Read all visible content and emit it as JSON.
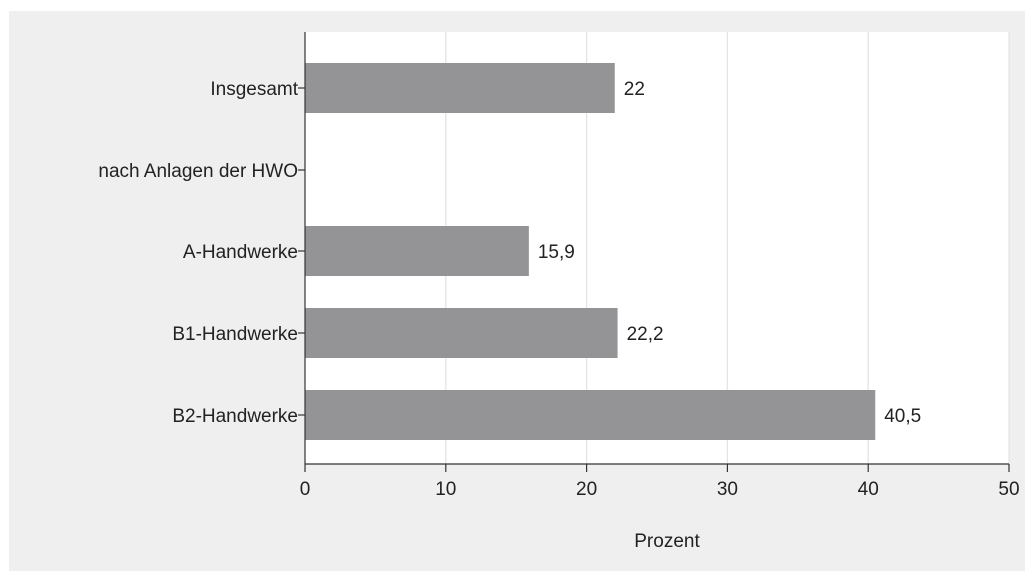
{
  "chart_data": {
    "type": "bar",
    "orientation": "horizontal",
    "title": "",
    "xlabel": "Prozent",
    "ylabel": "",
    "xlim": [
      0,
      50
    ],
    "x_ticks": [
      0,
      10,
      20,
      30,
      40,
      50
    ],
    "grid": "vertical",
    "categories": [
      "Insgesamt",
      "nach Anlagen der HWO",
      "A-Handwerke",
      "B1-Handwerke",
      "B2-Handwerke"
    ],
    "values": [
      22,
      null,
      15.9,
      22.2,
      40.5
    ],
    "data_labels": [
      "22",
      "",
      "15,9",
      "22,2",
      "40,5"
    ],
    "colors": {
      "background": "#efefef",
      "plot_area": "#ffffff",
      "bar": "#949496",
      "grid": "#e4e4e4",
      "axis": "#333333"
    }
  }
}
